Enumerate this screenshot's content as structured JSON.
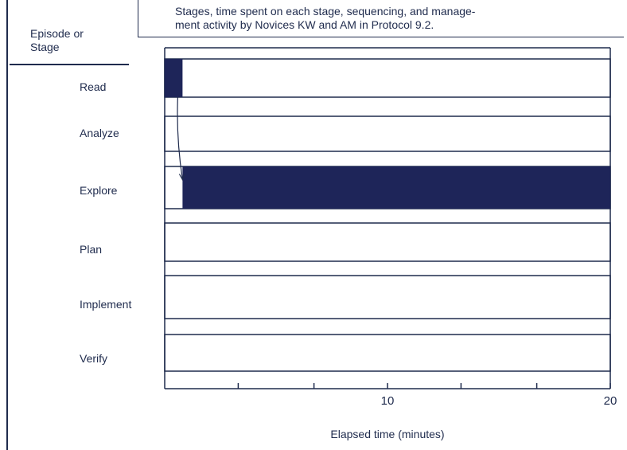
{
  "caption": {
    "line1": "Stages, time spent on each stage, sequencing, and manage-",
    "line2": "ment activity by Novices KW and AM in Protocol 9.2."
  },
  "stub_header": {
    "line1": "Episode or",
    "line2": "Stage"
  },
  "colors": {
    "ink": "#1f2b4d",
    "bar": "#1e2559",
    "background": "#ffffff"
  },
  "chart_data": {
    "type": "bar",
    "orientation": "horizontal-timeline",
    "categories": [
      "Read",
      "Analyze",
      "Explore",
      "Plan",
      "Implement",
      "Verify"
    ],
    "intervals": [
      {
        "stage": "Read",
        "start": 0,
        "end": 0.8
      },
      {
        "stage": "Explore",
        "start": 0.8,
        "end": 20
      }
    ],
    "transitions": [
      {
        "from": "Read",
        "to": "Explore",
        "at": 0.8
      }
    ],
    "x_ticks": [
      3.3,
      6.7,
      10,
      13.3,
      16.7,
      20
    ],
    "x_tick_labels": [
      {
        "value": 10,
        "label": "10"
      },
      {
        "value": 20,
        "label": "20"
      }
    ],
    "xlim": [
      0,
      20
    ],
    "xlabel": "Elapsed time (minutes)",
    "title": "",
    "grid": false
  }
}
